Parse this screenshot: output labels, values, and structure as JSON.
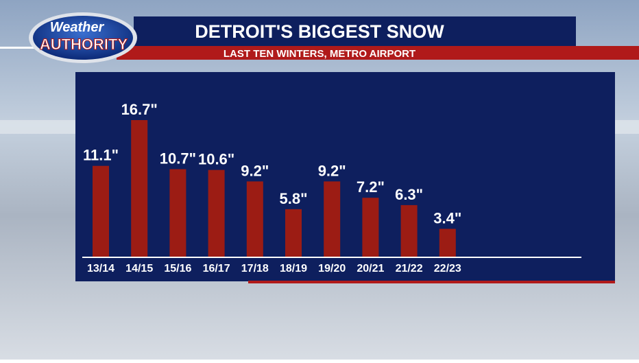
{
  "logo": {
    "line1": "Weather",
    "line2": "AUTHORITY"
  },
  "chart_data": {
    "type": "bar",
    "title": "DETROIT'S BIGGEST SNOW",
    "subtitle": "LAST TEN WINTERS, METRO AIRPORT",
    "categories": [
      "13/14",
      "14/15",
      "15/16",
      "16/17",
      "17/18",
      "18/19",
      "19/20",
      "20/21",
      "21/22",
      "22/23"
    ],
    "values": [
      11.1,
      16.7,
      10.7,
      10.6,
      9.2,
      5.8,
      9.2,
      7.2,
      6.3,
      3.4
    ],
    "value_labels": [
      "11.1\"",
      "16.7\"",
      "10.7\"",
      "10.6\"",
      "9.2\"",
      "5.8\"",
      "9.2\"",
      "7.2\"",
      "6.3\"",
      "3.4\""
    ],
    "color": "#9c1c14"
  }
}
